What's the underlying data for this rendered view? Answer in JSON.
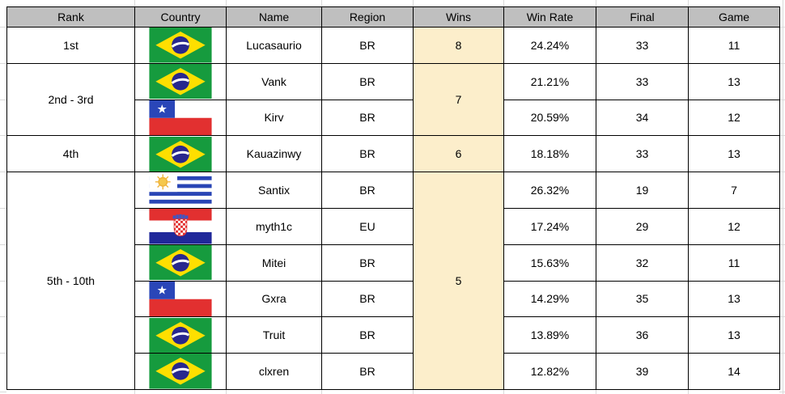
{
  "table": {
    "headers": [
      "Rank",
      "Country",
      "Name",
      "Region",
      "Wins",
      "Win Rate",
      "Final",
      "Game"
    ],
    "rows": [
      {
        "rank": "1st",
        "country": "Brazil",
        "name": "Lucasaurio",
        "region": "BR",
        "wins": "8",
        "win_rate": "24.24%",
        "final": "33",
        "game": "11"
      },
      {
        "rank": "2nd - 3rd",
        "country": "Brazil",
        "name": "Vank",
        "region": "BR",
        "wins": "7",
        "win_rate": "21.21%",
        "final": "33",
        "game": "13"
      },
      {
        "country": "Chile",
        "name": "Kirv",
        "region": "BR",
        "win_rate": "20.59%",
        "final": "34",
        "game": "12"
      },
      {
        "rank": "4th",
        "country": "Brazil",
        "name": "Kauazinwy",
        "region": "BR",
        "wins": "6",
        "win_rate": "18.18%",
        "final": "33",
        "game": "13"
      },
      {
        "rank": "5th - 10th",
        "country": "Uruguay",
        "name": "Santix",
        "region": "BR",
        "wins": "5",
        "win_rate": "26.32%",
        "final": "19",
        "game": "7"
      },
      {
        "country": "Croatia",
        "name": "myth1c",
        "region": "EU",
        "win_rate": "17.24%",
        "final": "29",
        "game": "12"
      },
      {
        "country": "Brazil",
        "name": "Mitei",
        "region": "BR",
        "win_rate": "15.63%",
        "final": "32",
        "game": "11"
      },
      {
        "country": "Chile",
        "name": "Gxra",
        "region": "BR",
        "win_rate": "14.29%",
        "final": "35",
        "game": "13"
      },
      {
        "country": "Brazil",
        "name": "Truit",
        "region": "BR",
        "win_rate": "13.89%",
        "final": "36",
        "game": "13"
      },
      {
        "country": "Brazil",
        "name": "clxren",
        "region": "BR",
        "win_rate": "12.82%",
        "final": "39",
        "game": "14"
      }
    ]
  },
  "colors": {
    "header_bg": "#BFBFBF",
    "wins_bg": "#FCEECB",
    "border": "#000000",
    "gridline": "#D9D9D9"
  }
}
